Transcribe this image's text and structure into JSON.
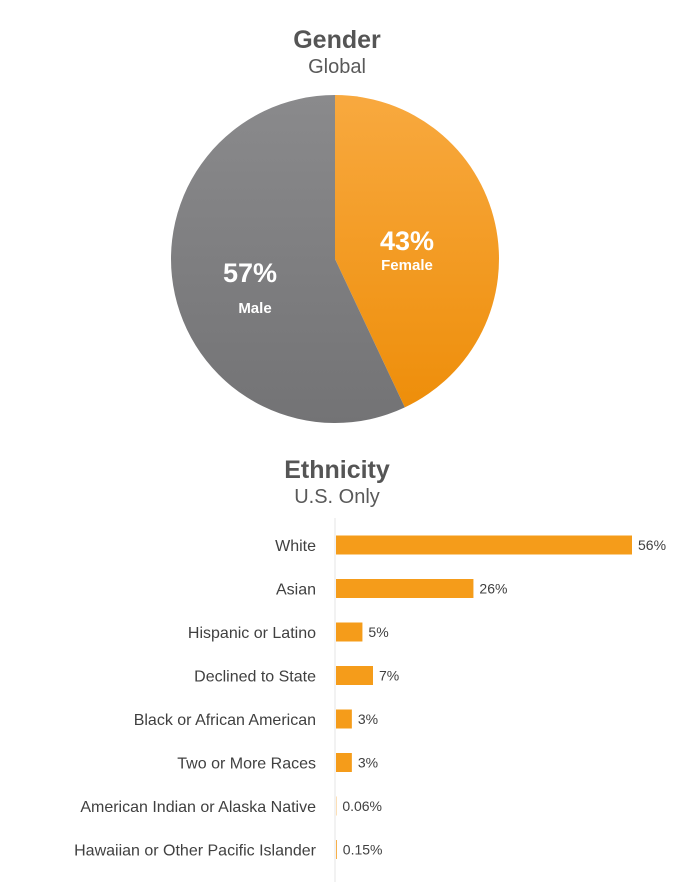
{
  "chart_data": [
    {
      "type": "pie",
      "title": "Gender",
      "subtitle": "Global",
      "slices": [
        {
          "name": "Female",
          "value": 43,
          "label": "43%",
          "color": "#F59C1A"
        },
        {
          "name": "Male",
          "value": 57,
          "label": "57%",
          "color": "#7B7B7D"
        }
      ]
    },
    {
      "type": "bar",
      "orientation": "horizontal",
      "title": "Ethnicity",
      "subtitle": "U.S. Only",
      "bar_color": "#F59C1A",
      "categories": [
        "White",
        "Asian",
        "Hispanic or Latino",
        "Declined to State",
        "Black or African American",
        "Two or More Races",
        "American Indian or Alaska Native",
        "Hawaiian or Other Pacific Islander"
      ],
      "values": [
        56,
        26,
        5,
        7,
        3,
        3,
        0.06,
        0.15
      ],
      "labels": [
        "56%",
        "26%",
        "5%",
        "7%",
        "3%",
        "3%",
        "0.06%",
        "0.15%"
      ],
      "xlim": [
        0,
        56
      ]
    }
  ]
}
